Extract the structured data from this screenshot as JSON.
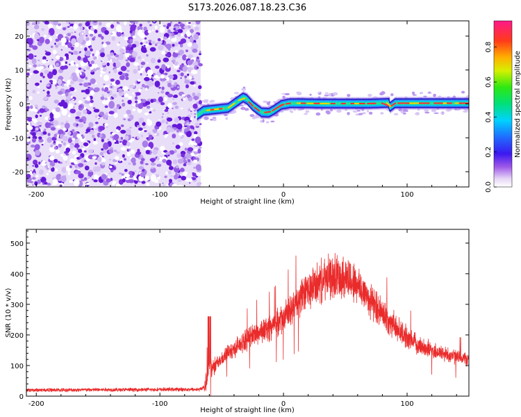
{
  "title": "S173.2026.087.18.23.C36",
  "colors": {
    "noise": "#7a22e0",
    "snr_line": "#ea2b2b",
    "frame": "#000000"
  },
  "chart_data": [
    {
      "type": "heatmap",
      "name": "spectrogram",
      "xlabel": "Height of straight line (km)",
      "ylabel": "Frequency (Hz)",
      "xlim": [
        -208,
        150
      ],
      "ylim": [
        -24.5,
        24.5
      ],
      "xticks": [
        -200,
        -100,
        0,
        100
      ],
      "yticks": [
        -20,
        -10,
        0,
        10,
        20
      ],
      "noise_region_x": [
        -208,
        -67
      ],
      "signal_track": {
        "x": [
          -70,
          -65,
          -55,
          -45,
          -38,
          -33,
          -30,
          -25,
          -18,
          -12,
          -8,
          -2,
          5,
          15,
          30,
          50,
          70,
          85,
          86,
          90,
          100,
          120,
          150
        ],
        "y": [
          -3.3,
          -2.0,
          -1.6,
          -1.2,
          0.6,
          1.9,
          1.4,
          -0.6,
          -2.5,
          -2.6,
          -1.8,
          -0.3,
          0.2,
          0.2,
          0.1,
          0.1,
          0.1,
          0.3,
          -0.9,
          0.2,
          0.2,
          0.2,
          0.2
        ]
      },
      "colorbar": {
        "label": "Normalized spectral amplitude",
        "range": [
          0.0,
          0.95
        ],
        "ticks": [
          0.0,
          0.2,
          0.4,
          0.6,
          0.8
        ],
        "tick_labels": [
          "0.0",
          "0.2",
          "0.4",
          "0.6",
          "0.8"
        ]
      }
    },
    {
      "type": "line",
      "name": "snr",
      "xlabel": "Height of straight line (km)",
      "ylabel": "SNR (10 * v/v)",
      "xlim": [
        -208,
        150
      ],
      "ylim": [
        0,
        545
      ],
      "xticks": [
        -200,
        -100,
        0,
        100
      ],
      "yticks": [
        0,
        100,
        200,
        300,
        400,
        500
      ],
      "series": [
        {
          "name": "SNR",
          "x": [
            -208,
            -180,
            -150,
            -120,
            -90,
            -75,
            -68,
            -64,
            -62,
            -60,
            -55,
            -50,
            -45,
            -40,
            -35,
            -30,
            -25,
            -20,
            -15,
            -10,
            -5,
            0,
            5,
            10,
            15,
            20,
            25,
            30,
            35,
            40,
            45,
            50,
            55,
            60,
            65,
            70,
            75,
            80,
            85,
            90,
            95,
            100,
            110,
            120,
            130,
            140,
            150
          ],
          "y": [
            20,
            20,
            21,
            21,
            22,
            22,
            22,
            30,
            60,
            90,
            105,
            120,
            140,
            155,
            170,
            185,
            200,
            208,
            218,
            225,
            240,
            255,
            275,
            300,
            325,
            345,
            360,
            372,
            382,
            390,
            395,
            390,
            378,
            360,
            340,
            315,
            290,
            268,
            248,
            228,
            210,
            190,
            165,
            150,
            138,
            128,
            120
          ]
        }
      ]
    }
  ]
}
